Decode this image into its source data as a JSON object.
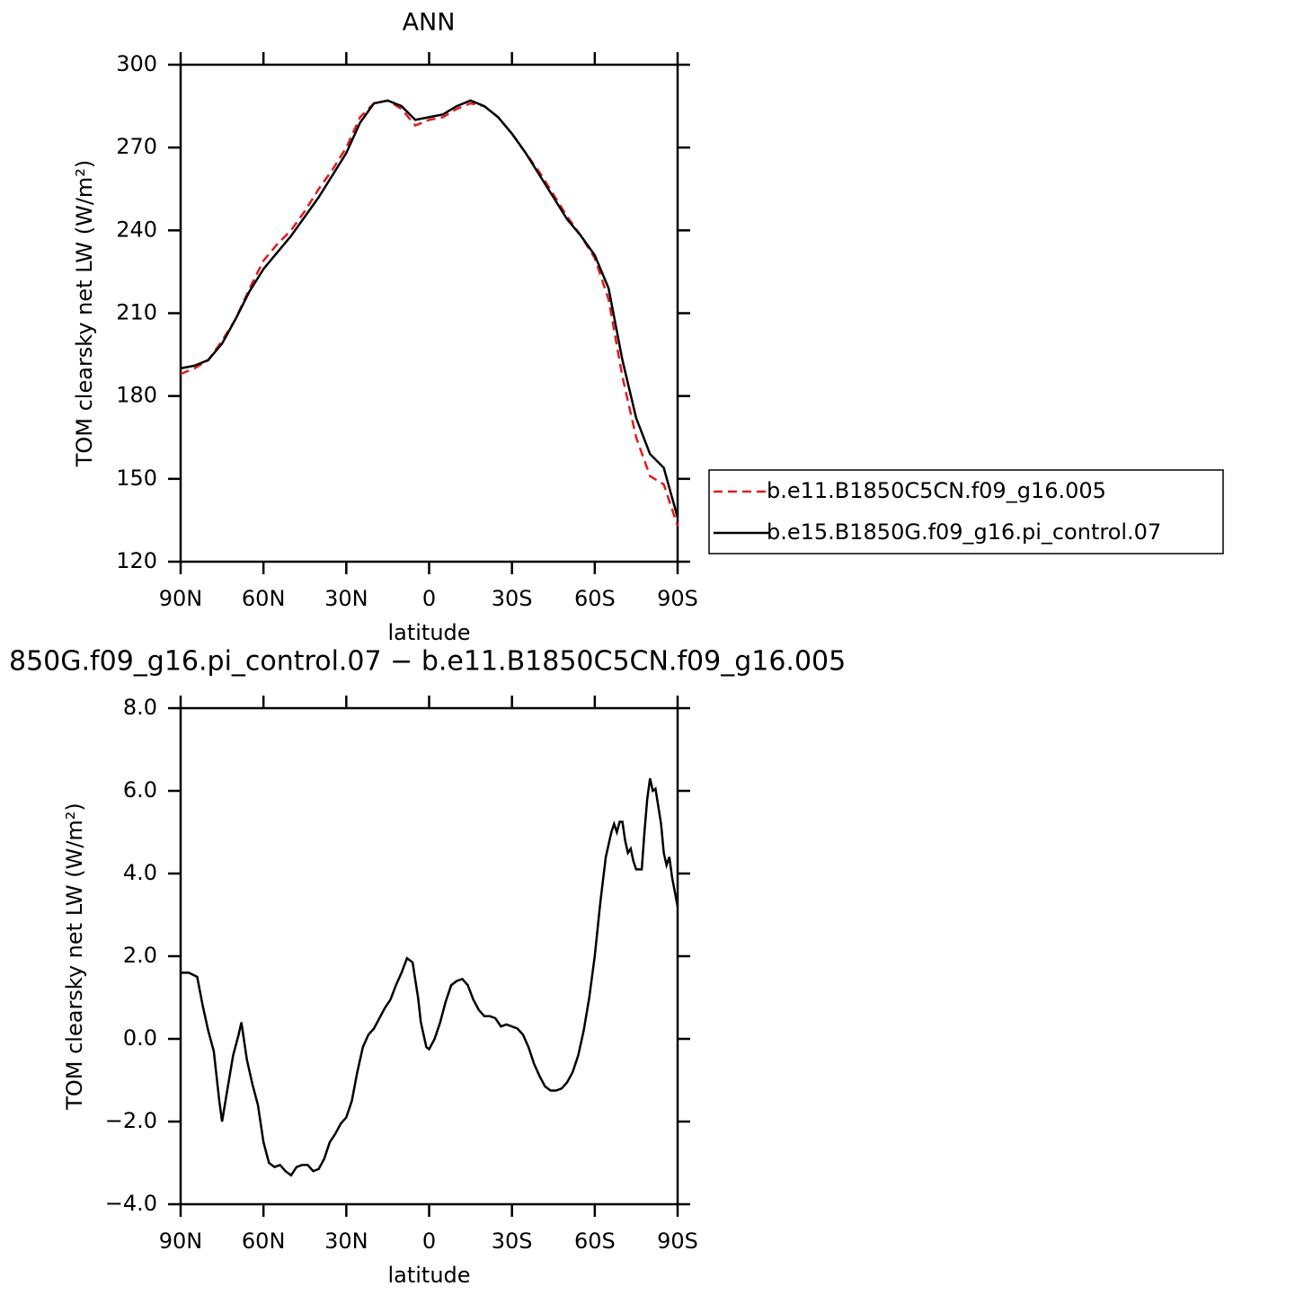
{
  "chart_data": [
    {
      "type": "line",
      "title": "ANN",
      "ylabel": "TOM clearsky net LW (W/m²)",
      "xlabel": "latitude",
      "xlim": [
        90,
        -90
      ],
      "xticks": [
        {
          "value": 90,
          "label": "90N"
        },
        {
          "value": 60,
          "label": "60N"
        },
        {
          "value": 30,
          "label": "30N"
        },
        0,
        {
          "value": -30,
          "label": "30S"
        },
        {
          "value": -60,
          "label": "60S"
        },
        {
          "value": -90,
          "label": "90S"
        }
      ],
      "ylim": [
        120,
        300
      ],
      "yticks": [
        120,
        150,
        180,
        210,
        240,
        270,
        300
      ],
      "legend": "right",
      "x": [
        90,
        85,
        80,
        75,
        70,
        65,
        60,
        55,
        50,
        45,
        40,
        35,
        30,
        25,
        20,
        15,
        10,
        5,
        0,
        -5,
        -10,
        -15,
        -20,
        -25,
        -30,
        -35,
        -40,
        -45,
        -50,
        -55,
        -60,
        -65,
        -70,
        -75,
        -80,
        -85,
        -90
      ],
      "series": [
        {
          "name": "b.e11.B1850C5CN.f09_g16.005",
          "color": "#e31a1c",
          "linestyle": "dashed",
          "values": [
            188,
            190,
            193,
            200,
            208,
            219,
            229,
            235,
            240,
            247,
            255,
            262,
            270,
            281,
            286,
            287,
            284,
            278,
            280,
            281,
            284,
            286,
            285,
            281,
            275,
            268,
            261,
            253,
            245,
            238,
            230,
            215,
            187,
            165,
            151,
            148,
            133
          ]
        },
        {
          "name": "b.e15.B1850G.f09_g16.pi_control.07",
          "color": "#000000",
          "linestyle": "solid",
          "values": [
            190,
            191,
            193,
            199,
            208,
            218,
            226,
            232,
            238,
            245,
            252,
            260,
            268,
            279,
            286,
            287,
            285,
            280,
            281,
            282,
            285,
            287,
            285,
            281,
            275,
            268,
            260,
            252,
            244,
            238,
            231,
            219,
            193,
            172,
            159,
            154,
            136
          ]
        }
      ]
    },
    {
      "type": "line",
      "title": "850G.f09_g16.pi_control.07 − b.e11.B1850C5CN.f09_g16.005",
      "ylabel": "TOM clearsky net LW (W/m²)",
      "xlabel": "latitude",
      "xlim": [
        90,
        -90
      ],
      "xticks": [
        {
          "value": 90,
          "label": "90N"
        },
        {
          "value": 60,
          "label": "60N"
        },
        {
          "value": 30,
          "label": "30N"
        },
        0,
        {
          "value": -30,
          "label": "30S"
        },
        {
          "value": -60,
          "label": "60S"
        },
        {
          "value": -90,
          "label": "90S"
        }
      ],
      "ylim": [
        -4,
        8
      ],
      "yticks": [
        {
          "value": -4,
          "label": "−4.0"
        },
        {
          "value": -2,
          "label": "−2.0"
        },
        {
          "value": 0,
          "label": "0.0"
        },
        {
          "value": 2,
          "label": "2.0"
        },
        {
          "value": 4,
          "label": "4.0"
        },
        {
          "value": 6,
          "label": "6.0"
        },
        {
          "value": 8,
          "label": "8.0"
        }
      ],
      "x": [
        90,
        87,
        84,
        82,
        80,
        78,
        76,
        75,
        73,
        71,
        69,
        68,
        66,
        64,
        62,
        60,
        58,
        56,
        54,
        52,
        50,
        48,
        46,
        44,
        42,
        40,
        38,
        36,
        34,
        32,
        30,
        28,
        26,
        24,
        22,
        20,
        18,
        16,
        14,
        12,
        10,
        8,
        6,
        4,
        3,
        1,
        0,
        -2,
        -4,
        -6,
        -8,
        -10,
        -12,
        -14,
        -16,
        -18,
        -20,
        -22,
        -24,
        -26,
        -28,
        -30,
        -32,
        -34,
        -36,
        -38,
        -40,
        -42,
        -44,
        -46,
        -48,
        -50,
        -52,
        -54,
        -56,
        -58,
        -60,
        -62,
        -64,
        -66,
        -67,
        -68,
        -69,
        -70,
        -71,
        -72,
        -73,
        -74,
        -75,
        -77,
        -78,
        -79,
        -80,
        -81,
        -82,
        -84,
        -85,
        -86,
        -87,
        -88,
        -90
      ],
      "series": [
        {
          "color": "#000000",
          "linestyle": "solid",
          "values": [
            1.6,
            1.6,
            1.5,
            0.8,
            0.2,
            -0.3,
            -1.5,
            -2.0,
            -1.2,
            -0.4,
            0.1,
            0.4,
            -0.5,
            -1.1,
            -1.6,
            -2.5,
            -3.0,
            -3.1,
            -3.05,
            -3.2,
            -3.3,
            -3.1,
            -3.05,
            -3.05,
            -3.2,
            -3.15,
            -2.9,
            -2.5,
            -2.3,
            -2.05,
            -1.9,
            -1.5,
            -0.8,
            -0.2,
            0.1,
            0.25,
            0.5,
            0.75,
            0.95,
            1.3,
            1.6,
            1.95,
            1.85,
            1.0,
            0.4,
            -0.2,
            -0.25,
            0.0,
            0.4,
            0.9,
            1.3,
            1.4,
            1.45,
            1.3,
            0.95,
            0.7,
            0.55,
            0.55,
            0.5,
            0.3,
            0.35,
            0.3,
            0.25,
            0.1,
            -0.2,
            -0.6,
            -0.9,
            -1.15,
            -1.25,
            -1.25,
            -1.2,
            -1.05,
            -0.8,
            -0.4,
            0.2,
            1.0,
            2.0,
            3.3,
            4.4,
            5.0,
            5.2,
            5.0,
            5.25,
            5.25,
            4.8,
            4.5,
            4.6,
            4.3,
            4.1,
            4.1,
            5.0,
            5.8,
            6.3,
            6.0,
            6.05,
            5.2,
            4.5,
            4.2,
            4.4,
            3.9,
            3.2
          ]
        }
      ]
    }
  ]
}
